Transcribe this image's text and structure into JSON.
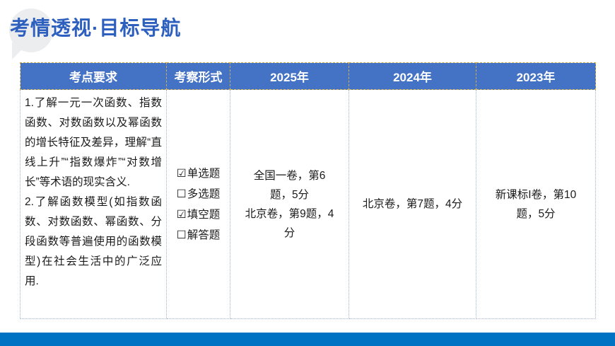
{
  "slide": {
    "title": "考情透视·目标导航",
    "title_color": "#2D5FBE",
    "header_bg_color": "#4472C4",
    "header_border_color": "#D2B14E",
    "body_border_color": "#A3B3D3",
    "footer_bar_color": "#0072C4",
    "bubble_color": "#ECEDEF"
  },
  "table": {
    "headers": [
      "考点要求",
      "考察形式",
      "2025年",
      "2024年",
      "2023年"
    ],
    "requirements": {
      "item1": "1.了解一元一次函数、指数函数、对数函数以及幂函数的增长特征及差异，理解“直线上升”“指数爆炸”“对数增长”等术语的现实含义.",
      "item2": "2.了解函数模型(如指数函数、对数函数、幂函数、分段函数等普遍使用的函数模型)在社会生活中的广泛应用."
    },
    "checkbox": {
      "checked_glyph": "☑",
      "unchecked_glyph": "☐"
    },
    "exam_forms": [
      {
        "checked": true,
        "label": "单选题"
      },
      {
        "checked": false,
        "label": "多选题"
      },
      {
        "checked": true,
        "label": "填空题"
      },
      {
        "checked": false,
        "label": "解答题"
      }
    ],
    "year_2025": {
      "line1": "全国一卷，第6题，5分",
      "line2": "北京卷，第9题，4分"
    },
    "year_2024": "北京卷，第7题，4分",
    "year_2023": "新课标I卷，第10题，5分"
  }
}
